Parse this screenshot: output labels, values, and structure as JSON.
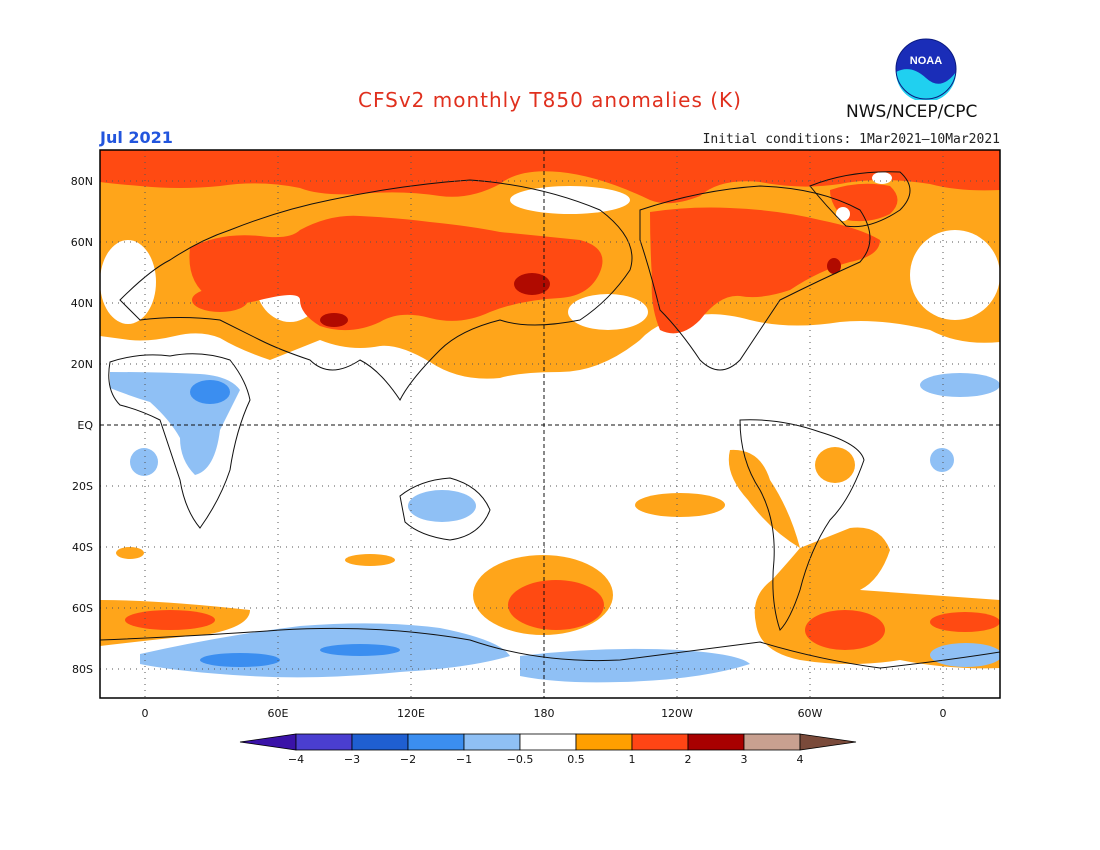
{
  "title": "CFSv2 monthly T850 anomalies (K)",
  "month": "Jul 2021",
  "initial_conditions": "Initial conditions: 1Mar2021–10Mar2021",
  "agency": "NWS/NCEP/CPC",
  "logo_text": "NOAA",
  "lat_labels": [
    "80N",
    "60N",
    "40N",
    "20N",
    "EQ",
    "20S",
    "40S",
    "60S",
    "80S"
  ],
  "lon_labels": [
    "0",
    "60E",
    "120E",
    "180",
    "120W",
    "60W",
    "0"
  ],
  "legend": {
    "labels": [
      "−4",
      "−3",
      "−2",
      "−1",
      "−0.5",
      "0.5",
      "1",
      "2",
      "3",
      "4"
    ],
    "colors": [
      "#3a12a8",
      "#4a3ed0",
      "#1f5fd1",
      "#3b8ef0",
      "#8fc0f5",
      "#ffffff",
      "#ff9f00",
      "#ff4515",
      "#a80000",
      "#c8a090",
      "#7a4a3a"
    ]
  },
  "colors": {
    "warm1": "#ffa51a",
    "warm2": "#ff4a12",
    "warm3": "#b00a00",
    "cool1": "#8fc0f5",
    "cool2": "#3b8ef0"
  }
}
